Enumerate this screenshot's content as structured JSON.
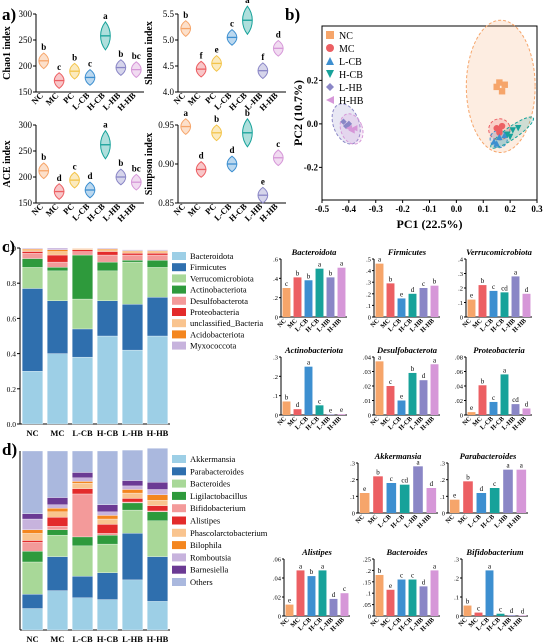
{
  "panel_labels": {
    "a": "a)",
    "b": "b)",
    "c": "c)",
    "d": "d)"
  },
  "groups": [
    "NC",
    "MC",
    "PC",
    "L-CB",
    "H-CB",
    "L-HB",
    "H-HB"
  ],
  "groups6": [
    "NC",
    "MC",
    "L-CB",
    "H-CB",
    "L-HB",
    "H-HB"
  ],
  "colors": {
    "NC": "#f6a56a",
    "MC": "#ec5f63",
    "PC": "#f3c449",
    "L-CB": "#3d8fd0",
    "H-CB": "#17a29a",
    "L-HB": "#8a86c6",
    "H-HB": "#d697d8"
  },
  "chart_data": [
    {
      "type": "violin",
      "ylabel": "Chao1 index",
      "ylim": [
        150,
        300
      ],
      "yticks": [
        150,
        200,
        250,
        300
      ],
      "categories": [
        "NC",
        "MC",
        "PC",
        "L-CB",
        "H-CB",
        "L-HB",
        "H-HB"
      ],
      "values": [
        210,
        172,
        190,
        178,
        258,
        197,
        193
      ],
      "sig": [
        "b",
        "c",
        "b",
        "c",
        "a",
        "b",
        "bc"
      ]
    },
    {
      "type": "violin",
      "ylabel": "Shannon index",
      "ylim": [
        4.0,
        5.5
      ],
      "yticks": [
        4.0,
        4.5,
        5.0,
        5.5
      ],
      "categories": [
        "NC",
        "MC",
        "PC",
        "L-CB",
        "H-CB",
        "L-HB",
        "H-HB"
      ],
      "values": [
        5.22,
        4.44,
        4.55,
        5.05,
        5.38,
        4.41,
        4.84
      ],
      "sig": [
        "b",
        "f",
        "e",
        "c",
        "a",
        "f",
        "d"
      ]
    },
    {
      "type": "violin",
      "ylabel": "ACE index",
      "ylim": [
        150,
        300
      ],
      "yticks": [
        150,
        200,
        250,
        300
      ],
      "categories": [
        "NC",
        "MC",
        "PC",
        "L-CB",
        "H-CB",
        "L-HB",
        "H-HB"
      ],
      "values": [
        212,
        172,
        194,
        175,
        262,
        200,
        190
      ],
      "sig": [
        "b",
        "d",
        "c",
        "d",
        "a",
        "b",
        "bc"
      ]
    },
    {
      "type": "violin",
      "ylabel": "Simpson index",
      "ylim": [
        0.85,
        0.95
      ],
      "yticks": [
        0.85,
        0.9,
        0.95
      ],
      "categories": [
        "NC",
        "MC",
        "PC",
        "L-CB",
        "H-CB",
        "L-HB",
        "H-HB"
      ],
      "values": [
        0.948,
        0.893,
        0.94,
        0.9,
        0.94,
        0.86,
        0.908
      ],
      "sig": [
        "a",
        "d",
        "b",
        "d",
        "b",
        "e",
        "c"
      ]
    },
    {
      "type": "scatter",
      "xlabel": "PC1 (22.5%)",
      "ylabel": "PC2 (10.7%)",
      "xlim": [
        -0.5,
        0.3
      ],
      "ylim": [
        -0.35,
        0.45
      ],
      "xticks": [
        -0.5,
        -0.4,
        -0.3,
        -0.2,
        -0.1,
        0.0,
        0.1,
        0.2,
        0.3
      ],
      "yticks": [
        -0.2,
        0.0,
        0.2
      ],
      "series": [
        {
          "name": "NC",
          "marker": "square",
          "points": [
            [
              0.15,
              0.17
            ],
            [
              0.17,
              0.15
            ],
            [
              0.16,
              0.19
            ],
            [
              0.18,
              0.18
            ]
          ]
        },
        {
          "name": "MC",
          "marker": "circle",
          "points": [
            [
              0.15,
              -0.02
            ],
            [
              0.16,
              -0.03
            ],
            [
              0.17,
              -0.01
            ],
            [
              0.16,
              -0.04
            ]
          ]
        },
        {
          "name": "L-CB",
          "marker": "triangle",
          "points": [
            [
              0.14,
              -0.08
            ],
            [
              0.16,
              -0.06
            ],
            [
              0.18,
              -0.05
            ],
            [
              0.15,
              -0.09
            ]
          ]
        },
        {
          "name": "H-CB",
          "marker": "triangle-down",
          "points": [
            [
              0.19,
              -0.05
            ],
            [
              0.21,
              -0.03
            ],
            [
              0.2,
              -0.06
            ],
            [
              0.23,
              -0.02
            ]
          ]
        },
        {
          "name": "L-HB",
          "marker": "diamond",
          "points": [
            [
              -0.42,
              0.01
            ],
            [
              -0.41,
              -0.01
            ],
            [
              -0.4,
              0.0
            ]
          ]
        },
        {
          "name": "H-HB",
          "marker": "triangle-left",
          "points": [
            [
              -0.4,
              -0.02
            ],
            [
              -0.39,
              -0.03
            ],
            [
              -0.38,
              -0.02
            ]
          ]
        }
      ]
    },
    {
      "type": "bar",
      "stacked": true,
      "ylim": [
        0,
        1.0
      ],
      "yticks": [
        0,
        0.2,
        0.4,
        0.6,
        0.8,
        1.0
      ],
      "categories": [
        "NC",
        "MC",
        "L-CB",
        "H-CB",
        "L-HB",
        "H-HB"
      ],
      "series": [
        {
          "name": "Bacteroidota",
          "color": "#9dcfe6",
          "values": [
            0.3,
            0.4,
            0.38,
            0.5,
            0.42,
            0.5
          ]
        },
        {
          "name": "Firmicutes",
          "color": "#2f6fae",
          "values": [
            0.47,
            0.3,
            0.16,
            0.2,
            0.26,
            0.22
          ]
        },
        {
          "name": "Verrucomicrobiota",
          "color": "#a8d898",
          "values": [
            0.12,
            0.17,
            0.17,
            0.17,
            0.24,
            0.17
          ]
        },
        {
          "name": "Actinobacteriota",
          "color": "#2e9a3c",
          "values": [
            0.05,
            0.02,
            0.25,
            0.05,
            0.01,
            0.04
          ]
        },
        {
          "name": "Desulfobacterota",
          "color": "#f39a9a",
          "values": [
            0.03,
            0.03,
            0.02,
            0.04,
            0.03,
            0.03
          ]
        },
        {
          "name": "Proteobacteria",
          "color": "#e32b2b",
          "values": [
            0.01,
            0.04,
            0.01,
            0.02,
            0.01,
            0.01
          ]
        },
        {
          "name": "unclassified_Bacteria",
          "color": "#f9c48f",
          "values": [
            0.01,
            0.02,
            0.005,
            0.01,
            0.01,
            0.01
          ]
        },
        {
          "name": "Acidobacteriota",
          "color": "#f4861f",
          "values": [
            0.005,
            0.01,
            0.003,
            0.005,
            0.005,
            0.005
          ]
        },
        {
          "name": "Myxococcota",
          "color": "#c7b3dd",
          "values": [
            0.005,
            0.01,
            0.002,
            0.005,
            0.005,
            0.005
          ]
        }
      ]
    },
    {
      "type": "bar",
      "title": "Bacteroidota",
      "ylim": [
        0,
        0.6
      ],
      "yticks": [
        0,
        0.2,
        0.4,
        0.6
      ],
      "categories": [
        "NC",
        "MC",
        "L-CB",
        "H-CB",
        "L-HB",
        "H-HB"
      ],
      "values": [
        0.3,
        0.41,
        0.38,
        0.5,
        0.41,
        0.51
      ],
      "sig": [
        "c",
        "b",
        "b",
        "a",
        "b",
        "a"
      ]
    },
    {
      "type": "bar",
      "title": "Firmicutes",
      "ylim": [
        0,
        0.5
      ],
      "yticks": [
        0,
        0.1,
        0.2,
        0.3,
        0.4,
        0.5
      ],
      "categories": [
        "NC",
        "MC",
        "L-CB",
        "H-CB",
        "L-HB",
        "H-HB"
      ],
      "values": [
        0.46,
        0.29,
        0.16,
        0.2,
        0.25,
        0.27
      ],
      "sig": [
        "a",
        "b",
        "e",
        "d",
        "c",
        "b"
      ]
    },
    {
      "type": "bar",
      "title": "Verrucomicrobiota",
      "ylim": [
        0,
        0.4
      ],
      "yticks": [
        0,
        0.1,
        0.2,
        0.3,
        0.4
      ],
      "categories": [
        "NC",
        "MC",
        "L-CB",
        "H-CB",
        "L-HB",
        "H-HB"
      ],
      "values": [
        0.12,
        0.22,
        0.18,
        0.17,
        0.28,
        0.16
      ],
      "sig": [
        "e",
        "b",
        "c",
        "cd",
        "a",
        "d"
      ]
    },
    {
      "type": "bar",
      "title": "Actinobacteriota",
      "ylim": [
        0,
        0.3
      ],
      "yticks": [
        0,
        0.1,
        0.2,
        0.3
      ],
      "categories": [
        "NC",
        "MC",
        "L-CB",
        "H-CB",
        "L-HB",
        "H-HB"
      ],
      "values": [
        0.07,
        0.03,
        0.25,
        0.05,
        0.003,
        0.004
      ],
      "sig": [
        "b",
        "d",
        "a",
        "c",
        "e",
        "e"
      ]
    },
    {
      "type": "bar",
      "title": "Desulfobacterota",
      "ylim": [
        0,
        0.04
      ],
      "yticks": [
        0,
        0.01,
        0.02,
        0.03,
        0.04
      ],
      "categories": [
        "NC",
        "MC",
        "L-CB",
        "H-CB",
        "L-HB",
        "H-HB"
      ],
      "values": [
        0.037,
        0.02,
        0.01,
        0.029,
        0.024,
        0.035
      ],
      "sig": [
        "a",
        "c",
        "e",
        "b",
        "d",
        "a"
      ]
    },
    {
      "type": "bar",
      "title": "Proteobacteria",
      "ylim": [
        0,
        0.08
      ],
      "yticks": [
        0,
        0.02,
        0.04,
        0.06,
        0.08
      ],
      "categories": [
        "NC",
        "MC",
        "L-CB",
        "H-CB",
        "L-HB",
        "H-HB"
      ],
      "values": [
        0.004,
        0.041,
        0.018,
        0.056,
        0.015,
        0.009
      ],
      "sig": [
        "e",
        "b",
        "c",
        "a",
        "cd",
        "d"
      ]
    },
    {
      "type": "bar",
      "stacked": true,
      "ylim": [
        0,
        1.0
      ],
      "categories": [
        "NC",
        "MC",
        "L-CB",
        "H-CB",
        "L-HB",
        "H-HB"
      ],
      "series": [
        {
          "name": "Akkermansia",
          "color": "#9dcfe6",
          "values": [
            0.12,
            0.22,
            0.18,
            0.17,
            0.28,
            0.16
          ]
        },
        {
          "name": "Parabacteroides",
          "color": "#2f6fae",
          "values": [
            0.08,
            0.19,
            0.12,
            0.15,
            0.26,
            0.25
          ]
        },
        {
          "name": "Bacteroides",
          "color": "#a8d898",
          "values": [
            0.18,
            0.12,
            0.17,
            0.16,
            0.13,
            0.2
          ]
        },
        {
          "name": "Ligilactobacillus",
          "color": "#2e9a3c",
          "values": [
            0.06,
            0.03,
            0.05,
            0.05,
            0.04,
            0.05
          ]
        },
        {
          "name": "Bifidobacterium",
          "color": "#f39a9a",
          "values": [
            0.05,
            0.02,
            0.24,
            0.01,
            0.005,
            0.005
          ]
        },
        {
          "name": "Alistipes",
          "color": "#e32b2b",
          "values": [
            0.01,
            0.05,
            0.03,
            0.05,
            0.02,
            0.03
          ]
        },
        {
          "name": "Phascolarctobacterium",
          "color": "#f9c48f",
          "values": [
            0.04,
            0.03,
            0.03,
            0.03,
            0.03,
            0.03
          ]
        },
        {
          "name": "Bilophila",
          "color": "#f4861f",
          "values": [
            0.02,
            0.02,
            0.01,
            0.02,
            0.02,
            0.03
          ]
        },
        {
          "name": "Romboutsia",
          "color": "#c7b3dd",
          "values": [
            0.06,
            0.02,
            0.02,
            0.02,
            0.02,
            0.03
          ]
        },
        {
          "name": "Barnesiella",
          "color": "#6b3a94",
          "values": [
            0.03,
            0.04,
            0.03,
            0.04,
            0.03,
            0.04
          ]
        },
        {
          "name": "Others",
          "color": "#aab8de",
          "values": [
            0.35,
            0.26,
            0.12,
            0.3,
            0.17,
            0.19
          ]
        }
      ]
    },
    {
      "type": "bar",
      "title": "Akkermansia",
      "ylim": [
        0,
        0.3
      ],
      "yticks": [
        0,
        0.1,
        0.2,
        0.3
      ],
      "categories": [
        "NC",
        "MC",
        "L-CB",
        "H-CB",
        "L-HB",
        "H-HB"
      ],
      "values": [
        0.12,
        0.22,
        0.18,
        0.17,
        0.28,
        0.15
      ],
      "sig": [
        "e",
        "b",
        "c",
        "cd",
        "a",
        "d"
      ]
    },
    {
      "type": "bar",
      "title": "Parabacteroides",
      "ylim": [
        0,
        0.3
      ],
      "yticks": [
        0,
        0.1,
        0.2,
        0.3
      ],
      "categories": [
        "NC",
        "MC",
        "L-CB",
        "H-CB",
        "L-HB",
        "H-HB"
      ],
      "values": [
        0.08,
        0.19,
        0.12,
        0.15,
        0.26,
        0.26
      ],
      "sig": [
        "e",
        "b",
        "d",
        "c",
        "a",
        "a"
      ]
    },
    {
      "type": "bar",
      "title": "Alistipes",
      "ylim": [
        0,
        0.06
      ],
      "yticks": [
        0,
        0.02,
        0.04,
        0.06
      ],
      "categories": [
        "NC",
        "MC",
        "L-CB",
        "H-CB",
        "L-HB",
        "H-HB"
      ],
      "values": [
        0.012,
        0.048,
        0.042,
        0.048,
        0.018,
        0.024
      ],
      "sig": [
        "e",
        "a",
        "b",
        "a",
        "d",
        "c"
      ]
    },
    {
      "type": "bar",
      "title": "Bacteroides",
      "ylim": [
        0,
        0.25
      ],
      "yticks": [
        0,
        0.05,
        0.1,
        0.15,
        0.2,
        0.25
      ],
      "categories": [
        "NC",
        "MC",
        "L-CB",
        "H-CB",
        "L-HB",
        "H-HB"
      ],
      "values": [
        0.18,
        0.115,
        0.16,
        0.16,
        0.13,
        0.2
      ],
      "sig": [
        "b",
        "e",
        "c",
        "c",
        "d",
        "a"
      ]
    },
    {
      "type": "bar",
      "title": "Bifidobacterium",
      "ylim": [
        0,
        0.3
      ],
      "yticks": [
        0,
        0.1,
        0.2,
        0.3
      ],
      "categories": [
        "NC",
        "MC",
        "L-CB",
        "H-CB",
        "L-HB",
        "H-HB"
      ],
      "values": [
        0.055,
        0.018,
        0.24,
        0.012,
        0.004,
        0.003
      ],
      "sig": [
        "b",
        "c",
        "a",
        "c",
        "d",
        "d"
      ]
    }
  ]
}
